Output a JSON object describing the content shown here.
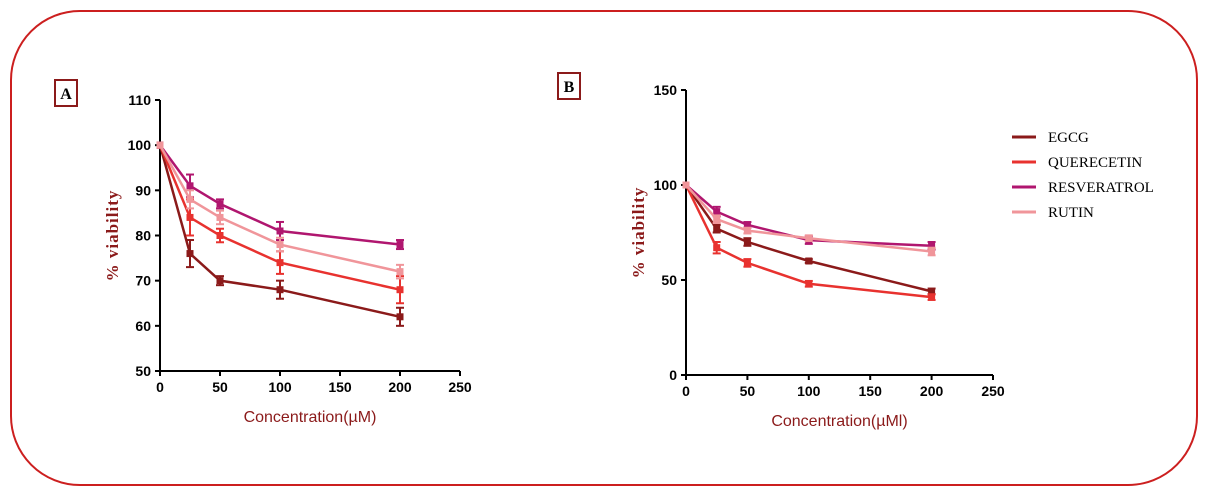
{
  "chart_data": [
    {
      "panel": "A",
      "type": "line",
      "xlabel": "Concentration(µM)",
      "ylabel": "% viability",
      "xlim": [
        0,
        250
      ],
      "ylim": [
        50,
        110
      ],
      "xticks": [
        0,
        50,
        100,
        150,
        200,
        250
      ],
      "yticks": [
        50,
        60,
        70,
        80,
        90,
        100,
        110
      ],
      "error_bars": true,
      "series": [
        {
          "name": "EGCG",
          "color": "#8b1a1a",
          "x": [
            0,
            25,
            50,
            100,
            200
          ],
          "y": [
            100,
            76,
            70,
            68,
            62
          ],
          "err": [
            0,
            3,
            1,
            2,
            2
          ]
        },
        {
          "name": "QUERECETIN",
          "color": "#e8322f",
          "x": [
            0,
            25,
            50,
            100,
            200
          ],
          "y": [
            100,
            84,
            80,
            74,
            68
          ],
          "err": [
            0,
            4,
            1.5,
            2.5,
            3
          ]
        },
        {
          "name": "RESVERATROL",
          "color": "#b0166f",
          "x": [
            0,
            25,
            50,
            100,
            200
          ],
          "y": [
            100,
            91,
            87,
            81,
            78
          ],
          "err": [
            0,
            2.5,
            1,
            2,
            1
          ]
        },
        {
          "name": "RUTIN",
          "color": "#f0959a",
          "x": [
            0,
            25,
            50,
            100,
            200
          ],
          "y": [
            100,
            88,
            84,
            78,
            72
          ],
          "err": [
            0,
            2,
            1.5,
            1.5,
            1.5
          ]
        }
      ]
    },
    {
      "panel": "B",
      "type": "line",
      "xlabel": "Concentration(µMl)",
      "ylabel": "% viability",
      "xlim": [
        0,
        250
      ],
      "ylim": [
        0,
        150
      ],
      "xticks": [
        0,
        50,
        100,
        150,
        200,
        250
      ],
      "yticks": [
        0,
        50,
        100,
        150
      ],
      "error_bars": true,
      "legend_position": "right",
      "series": [
        {
          "name": "EGCG",
          "color": "#8b1a1a",
          "x": [
            0,
            25,
            50,
            100,
            200
          ],
          "y": [
            100,
            77,
            70,
            60,
            44
          ],
          "err": [
            0,
            2,
            2,
            1,
            1.5
          ]
        },
        {
          "name": "QUERECETIN",
          "color": "#e8322f",
          "x": [
            0,
            25,
            50,
            100,
            200
          ],
          "y": [
            100,
            67,
            59,
            48,
            41
          ],
          "err": [
            0,
            3,
            2,
            1.5,
            1.5
          ]
        },
        {
          "name": "RESVERATROL",
          "color": "#b0166f",
          "x": [
            0,
            25,
            50,
            100,
            200
          ],
          "y": [
            100,
            86,
            79,
            71,
            68
          ],
          "err": [
            0,
            2.5,
            1.5,
            2,
            2
          ]
        },
        {
          "name": "RUTIN",
          "color": "#f0959a",
          "x": [
            0,
            25,
            50,
            100,
            200
          ],
          "y": [
            100,
            82,
            76,
            72,
            65
          ],
          "err": [
            0,
            2,
            1.5,
            1.5,
            2
          ]
        }
      ]
    }
  ]
}
